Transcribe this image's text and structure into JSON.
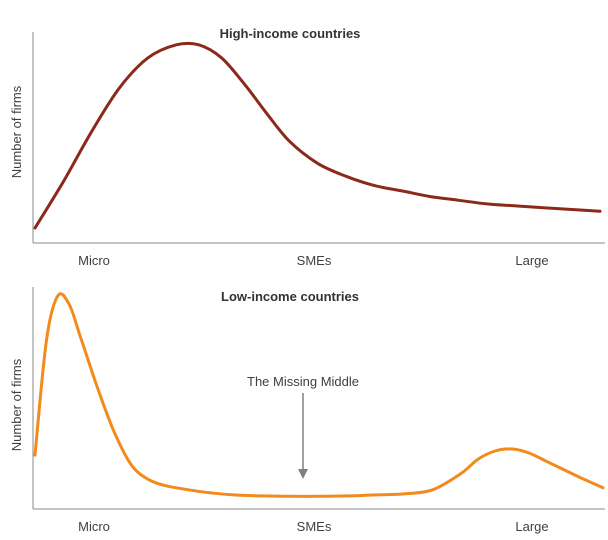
{
  "chart_data": [
    {
      "type": "line",
      "title": "High-income countries",
      "xlabel": "",
      "ylabel": "Number of firms",
      "categories": [
        "Micro",
        "SMEs",
        "Large"
      ],
      "y_tick_labels": false,
      "grid": false,
      "color": "#8B2A1A",
      "x": [
        0,
        0.05,
        0.1,
        0.15,
        0.2,
        0.25,
        0.29,
        0.33,
        0.37,
        0.41,
        0.45,
        0.5,
        0.55,
        0.6,
        0.65,
        0.7,
        0.75,
        0.8,
        0.85,
        0.9,
        0.95,
        1.0
      ],
      "y": [
        0.0,
        0.25,
        0.52,
        0.76,
        0.92,
        0.99,
        0.99,
        0.92,
        0.78,
        0.62,
        0.47,
        0.35,
        0.28,
        0.23,
        0.2,
        0.17,
        0.15,
        0.13,
        0.12,
        0.11,
        0.1,
        0.09
      ]
    },
    {
      "type": "line",
      "title": "Low-income countries",
      "xlabel": "",
      "ylabel": "Number of firms",
      "categories": [
        "Micro",
        "SMEs",
        "Large"
      ],
      "y_tick_labels": false,
      "grid": false,
      "color": "#F28A1C",
      "annotation": {
        "text": "The Missing Middle",
        "x": 0.47
      },
      "x": [
        0,
        0.02,
        0.04,
        0.06,
        0.08,
        0.11,
        0.14,
        0.17,
        0.2,
        0.23,
        0.27,
        0.31,
        0.35,
        0.4,
        0.45,
        0.5,
        0.55,
        0.6,
        0.65,
        0.7,
        0.75,
        0.78,
        0.81,
        0.84,
        0.87,
        0.9,
        0.93,
        0.96,
        1.0
      ],
      "y": [
        0.22,
        0.78,
        1.0,
        0.96,
        0.8,
        0.55,
        0.33,
        0.17,
        0.1,
        0.07,
        0.05,
        0.035,
        0.025,
        0.02,
        0.018,
        0.018,
        0.02,
        0.025,
        0.03,
        0.05,
        0.13,
        0.2,
        0.24,
        0.25,
        0.23,
        0.19,
        0.15,
        0.11,
        0.06
      ]
    }
  ]
}
